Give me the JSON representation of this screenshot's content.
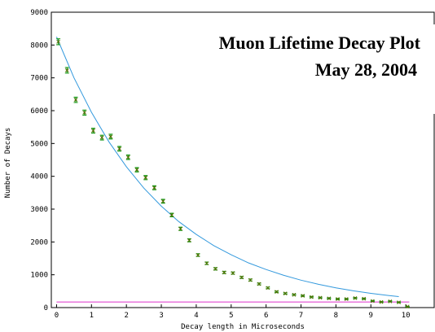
{
  "chart_data": {
    "type": "scatter",
    "title": "Muon Lifetime Decay Plot",
    "subtitle": "May 28, 2004",
    "x_label": "Decay length in Microseconds",
    "y_label": "Number of Decays",
    "x": [
      0.05,
      0.3,
      0.55,
      0.8,
      1.05,
      1.3,
      1.55,
      1.8,
      2.05,
      2.3,
      2.55,
      2.8,
      3.05,
      3.3,
      3.55,
      3.8,
      4.05,
      4.3,
      4.55,
      4.8,
      5.05,
      5.3,
      5.55,
      5.8,
      6.05,
      6.3,
      6.55,
      6.8,
      7.05,
      7.3,
      7.55,
      7.8,
      8.05,
      8.3,
      8.55,
      8.8,
      9.05,
      9.3,
      9.55,
      9.8,
      10.05
    ],
    "values": [
      8100,
      7230,
      6330,
      5940,
      5390,
      5180,
      5210,
      4840,
      4580,
      4200,
      3960,
      3650,
      3240,
      2820,
      2400,
      2050,
      1600,
      1350,
      1180,
      1070,
      1050,
      920,
      840,
      720,
      600,
      480,
      430,
      390,
      360,
      320,
      300,
      280,
      260,
      260,
      290,
      270,
      200,
      170,
      190,
      160,
      30
    ],
    "errors": [
      90,
      85,
      80,
      77,
      73,
      72,
      72,
      70,
      68,
      65,
      63,
      60,
      57,
      53,
      49,
      45,
      40,
      37,
      34,
      33,
      32,
      30,
      29,
      27,
      25,
      22,
      21,
      20,
      19,
      18,
      17,
      17,
      16,
      16,
      17,
      16,
      14,
      13,
      14,
      13,
      6
    ],
    "color": "#1a9a1a",
    "marker_color": "#556b00",
    "fit": {
      "color": "#3399dd",
      "x": [
        0,
        0.5,
        1,
        1.5,
        2,
        2.5,
        3,
        3.5,
        4,
        4.5,
        5,
        5.5,
        6,
        6.5,
        7,
        7.5,
        8,
        8.5,
        9,
        9.5,
        9.8
      ],
      "values": [
        8250,
        7000,
        5950,
        5050,
        4290,
        3640,
        3090,
        2620,
        2230,
        1890,
        1610,
        1360,
        1160,
        985,
        835,
        710,
        600,
        510,
        435,
        370,
        335
      ]
    },
    "background": {
      "color": "#dd33cc",
      "x": [
        0,
        10.1
      ],
      "values": [
        170,
        170
      ]
    },
    "xlim": [
      -0.15,
      11
    ],
    "ylim": [
      0,
      9000
    ],
    "xticks": [
      0,
      1,
      2,
      3,
      4,
      5,
      6,
      7,
      8,
      9,
      10
    ],
    "yticks": [
      0,
      1000,
      2000,
      3000,
      4000,
      5000,
      6000,
      7000,
      8000,
      9000
    ]
  }
}
